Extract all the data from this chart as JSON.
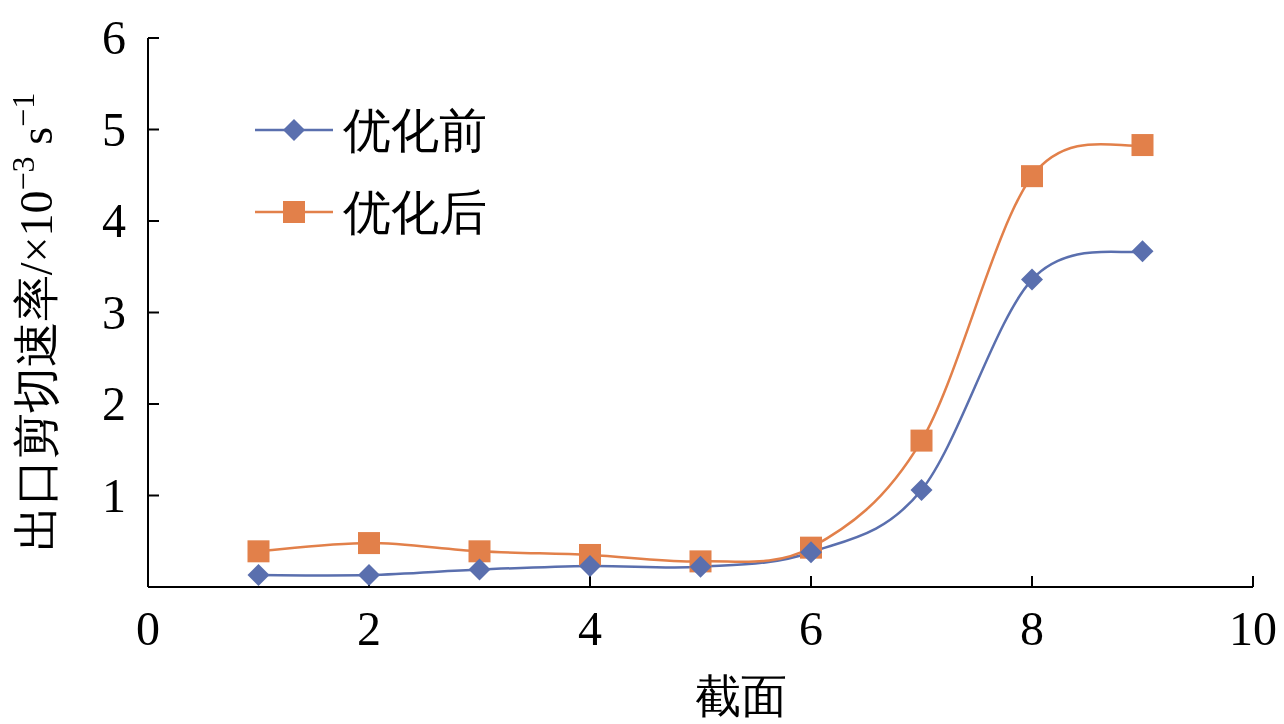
{
  "chart_data": {
    "type": "line",
    "xlabel": "截面",
    "ylabel": "出口剪切速率/×10$^{−3}$ s$^{−1}$",
    "xlim": [
      0,
      10
    ],
    "xticks": [
      0,
      2,
      4,
      6,
      8,
      10
    ],
    "ylim": [
      0,
      6
    ],
    "yticks": [
      1,
      2,
      3,
      4,
      5,
      6
    ],
    "grid": false,
    "legend": "top left",
    "line_style": "solid",
    "x": [
      1,
      2,
      3,
      4,
      5,
      6,
      7,
      8,
      9
    ],
    "series": [
      {
        "name": "优化前",
        "color": "#5a6fae",
        "marker": "diamond",
        "values": [
          0.13,
          0.13,
          0.19,
          0.23,
          0.22,
          0.38,
          1.06,
          3.36,
          3.67
        ]
      },
      {
        "name": "优化后",
        "color": "#e2804a",
        "marker": "square",
        "values": [
          0.39,
          0.48,
          0.39,
          0.35,
          0.28,
          0.43,
          1.6,
          4.49,
          4.83
        ]
      }
    ]
  }
}
